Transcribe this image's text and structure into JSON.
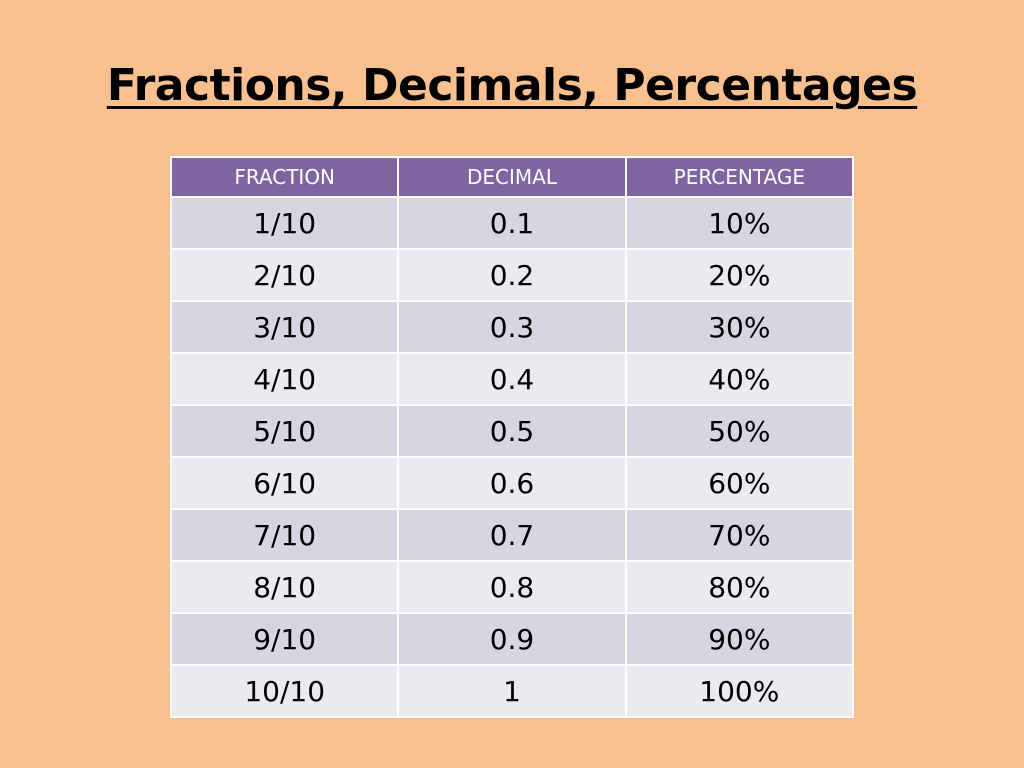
{
  "title": "Fractions, Decimals, Percentages",
  "table": {
    "headers": [
      "FRACTION",
      "DECIMAL",
      "PERCENTAGE"
    ],
    "rows": [
      [
        "1/10",
        "0.1",
        "10%"
      ],
      [
        "2/10",
        "0.2",
        "20%"
      ],
      [
        "3/10",
        "0.3",
        "30%"
      ],
      [
        "4/10",
        "0.4",
        "40%"
      ],
      [
        "5/10",
        "0.5",
        "50%"
      ],
      [
        "6/10",
        "0.6",
        "60%"
      ],
      [
        "7/10",
        "0.7",
        "70%"
      ],
      [
        "8/10",
        "0.8",
        "80%"
      ],
      [
        "9/10",
        "0.9",
        "90%"
      ],
      [
        "10/10",
        "1",
        "100%"
      ]
    ]
  },
  "colors": {
    "background": "#f8c08f",
    "header": "#8064a2",
    "row_odd": "#d8d4e2",
    "row_even": "#ece9f0"
  }
}
